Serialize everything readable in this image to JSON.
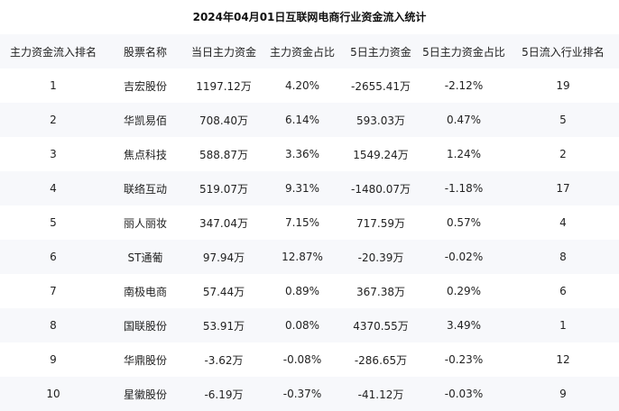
{
  "title": "2024年04月01日互联网电商行业资金流入统计",
  "table": {
    "headers": [
      "主力资金流入排名",
      "股票名称",
      "当日主力资金",
      "主力资金占比",
      "5日主力资金",
      "5日主力资金占比",
      "5日流入行业排名"
    ],
    "rows": [
      [
        "1",
        "吉宏股份",
        "1197.12万",
        "4.20%",
        "-2655.41万",
        "-2.12%",
        "19"
      ],
      [
        "2",
        "华凯易佰",
        "708.40万",
        "6.14%",
        "593.03万",
        "0.47%",
        "5"
      ],
      [
        "3",
        "焦点科技",
        "588.87万",
        "3.36%",
        "1549.24万",
        "1.24%",
        "2"
      ],
      [
        "4",
        "联络互动",
        "519.07万",
        "9.31%",
        "-1480.07万",
        "-1.18%",
        "17"
      ],
      [
        "5",
        "丽人丽妆",
        "347.04万",
        "7.15%",
        "717.59万",
        "0.57%",
        "4"
      ],
      [
        "6",
        "ST通葡",
        "97.94万",
        "12.87%",
        "-20.39万",
        "-0.02%",
        "8"
      ],
      [
        "7",
        "南极电商",
        "57.44万",
        "0.89%",
        "367.38万",
        "0.29%",
        "6"
      ],
      [
        "8",
        "国联股份",
        "53.91万",
        "0.08%",
        "4370.55万",
        "3.49%",
        "1"
      ],
      [
        "9",
        "华鼎股份",
        "-3.62万",
        "-0.08%",
        "-286.65万",
        "-0.23%",
        "12"
      ],
      [
        "10",
        "星徽股份",
        "-6.19万",
        "-0.37%",
        "-41.12万",
        "-0.03%",
        "9"
      ]
    ]
  }
}
